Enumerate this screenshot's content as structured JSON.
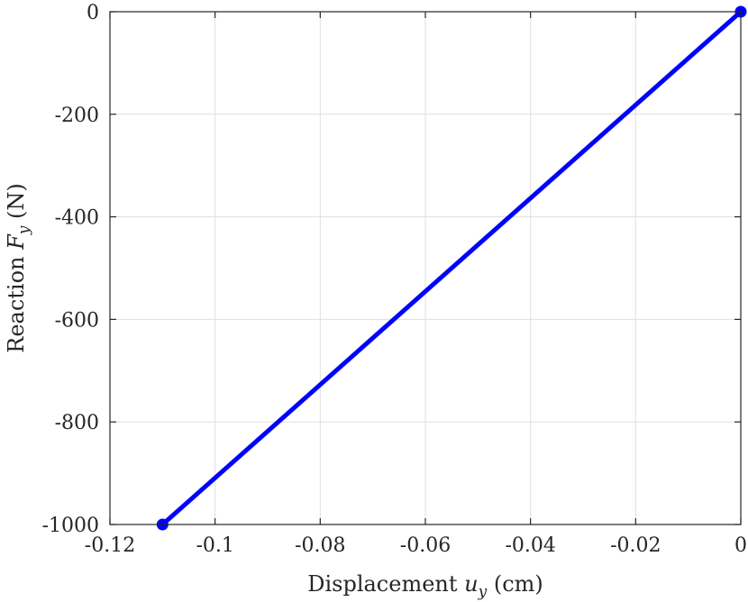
{
  "chart_data": {
    "type": "line",
    "xlabel": "Displacement u_y (cm)",
    "xlabel_parts": {
      "pre": "Displacement ",
      "var": "u",
      "sub": "y",
      "post": " (cm)"
    },
    "ylabel": "Reaction F_y (N)",
    "ylabel_parts": {
      "pre": "Reaction ",
      "var": "F",
      "sub": "y",
      "post": " (N)"
    },
    "xlim": [
      -0.12,
      0
    ],
    "ylim": [
      -1000,
      0
    ],
    "xticks": [
      -0.12,
      -0.1,
      -0.08,
      -0.06,
      -0.04,
      -0.02,
      0
    ],
    "xtick_labels": [
      "-0.12",
      "-0.1",
      "-0.08",
      "-0.06",
      "-0.04",
      "-0.02",
      "0"
    ],
    "yticks": [
      -1000,
      -800,
      -600,
      -400,
      -200,
      0
    ],
    "ytick_labels": [
      "-1000",
      "-800",
      "-600",
      "-400",
      "-200",
      "0"
    ],
    "grid": true,
    "series": [
      {
        "color": "#0000ff",
        "marker": "circle",
        "x": [
          -0.11,
          0
        ],
        "y": [
          -1000,
          0
        ]
      }
    ]
  }
}
